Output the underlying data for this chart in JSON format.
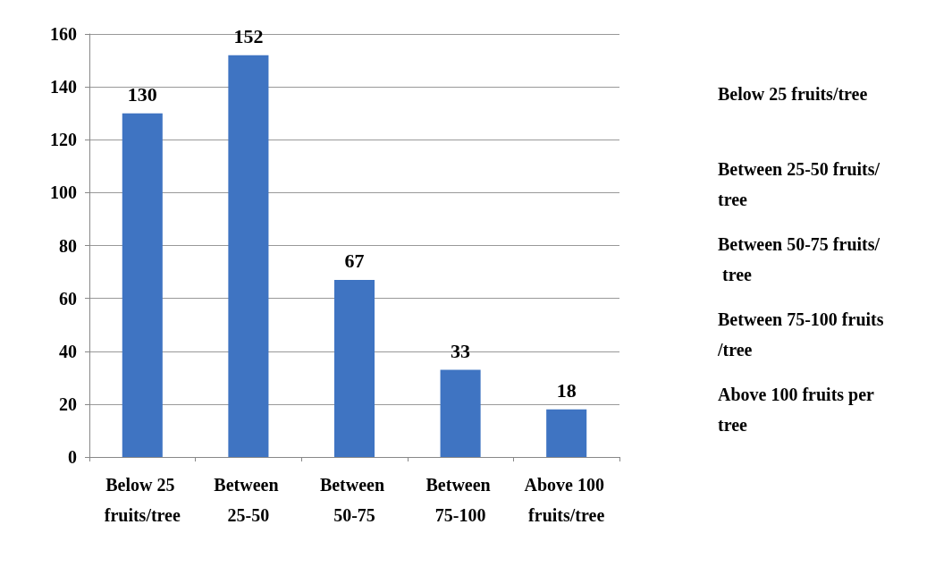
{
  "chart_data": {
    "type": "bar",
    "categories": [
      "Below 25 fruits/tree",
      "Between 25-50",
      "Between 50-75",
      "Between 75-100",
      "Above 100 fruits/tree"
    ],
    "values": [
      130,
      152,
      67,
      33,
      18
    ],
    "color": "#3f74c2",
    "ylim": [
      0,
      160
    ],
    "yticks": [
      0,
      20,
      40,
      60,
      80,
      100,
      120,
      140,
      160
    ],
    "grid": "y",
    "data_labels": true,
    "annotations": [
      "Below 25 fruits/tree",
      "Between 25-50 fruits/tree",
      "Between 50-75 fruits/ tree",
      "Between 75-100 fruits/tree",
      "Above 100 fruits per tree"
    ]
  }
}
